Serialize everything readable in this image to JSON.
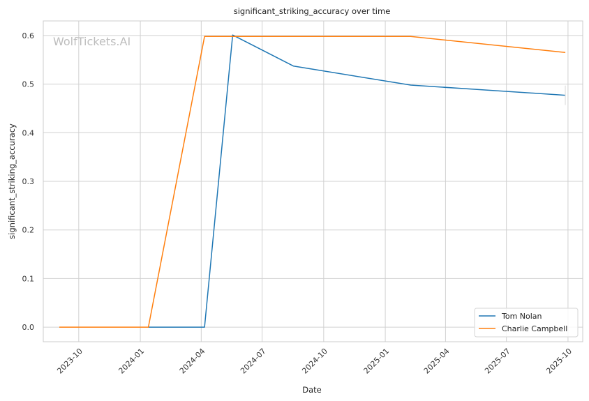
{
  "chart_data": {
    "type": "line",
    "title": "significant_striking_accuracy over time",
    "xlabel": "Date",
    "ylabel": "significant_striking_accuracy",
    "watermark": "WolfTickets.AI",
    "xlim": [
      "2023-08-09",
      "2025-10-23"
    ],
    "ylim": [
      -0.03,
      0.63
    ],
    "x_ticks": [
      "2023-10",
      "2024-01",
      "2024-04",
      "2024-07",
      "2024-10",
      "2025-01",
      "2025-04",
      "2025-07",
      "2025-10"
    ],
    "y_ticks": [
      0.0,
      0.1,
      0.2,
      0.3,
      0.4,
      0.5,
      0.6
    ],
    "y_tick_labels": [
      "0.0",
      "0.1",
      "0.2",
      "0.3",
      "0.4",
      "0.5",
      "0.6"
    ],
    "grid": true,
    "legend_position": "bottom-right",
    "series": [
      {
        "name": "Tom Nolan",
        "color": "#1f77b4",
        "x": [
          "2024-01-13",
          "2024-04-06",
          "2024-05-18",
          "2024-08-17",
          "2025-02-08",
          "2025-09-27"
        ],
        "y": [
          0.0,
          0.0,
          0.601,
          0.537,
          0.498,
          0.477
        ]
      },
      {
        "name": "Charlie Campbell",
        "color": "#ff7f0e",
        "x": [
          "2023-09-02",
          "2024-01-13",
          "2024-04-06",
          "2025-02-08",
          "2025-09-27"
        ],
        "y": [
          0.0,
          0.0,
          0.598,
          0.598,
          0.565
        ]
      }
    ]
  }
}
